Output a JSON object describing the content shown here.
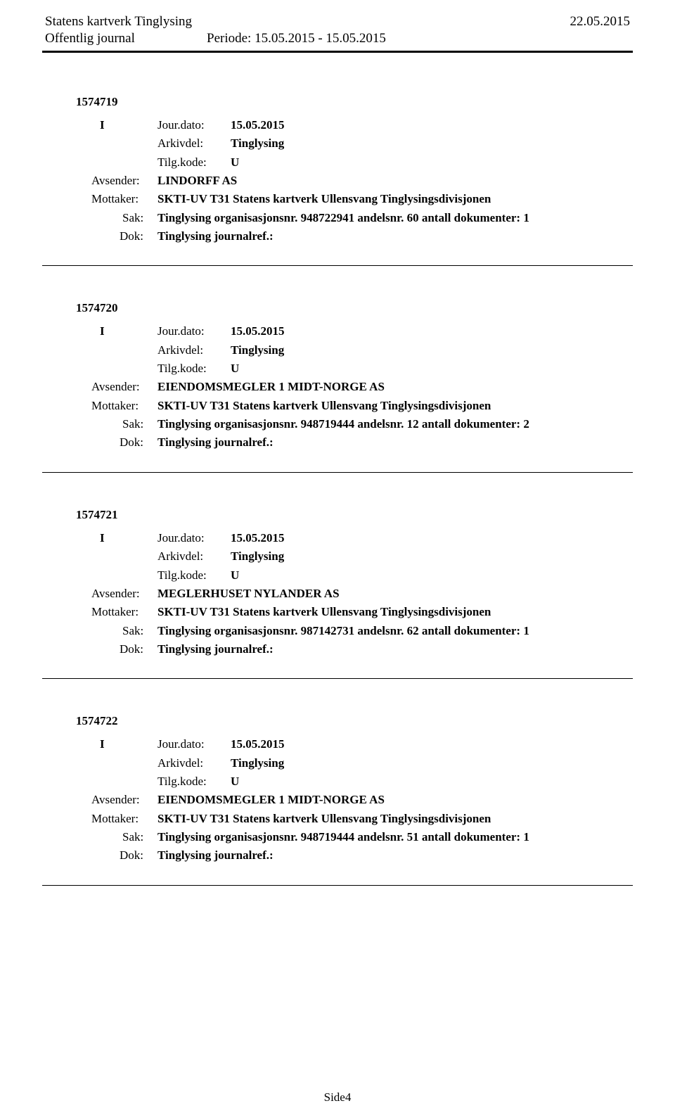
{
  "header": {
    "org": "Statens kartverk Tinglysing",
    "date": "22.05.2015",
    "journal": "Offentlig journal",
    "period": "Periode: 15.05.2015 - 15.05.2015"
  },
  "entries": [
    {
      "id": "1574719",
      "type": "I",
      "jour_label": "Jour.dato:",
      "jour_value": "15.05.2015",
      "arkiv_label": "Arkivdel:",
      "arkiv_value": "Tinglysing",
      "tilg_label": "Tilg.kode:",
      "tilg_value": "U",
      "avsender_label": "Avsender:",
      "avsender_value": "LINDORFF AS",
      "mottaker_label": "Mottaker:",
      "mottaker_value": "SKTI-UV T31 Statens kartverk Ullensvang Tinglysingsdivisjonen",
      "sak_label": "Sak:",
      "sak_value": "Tinglysing organisasjonsnr. 948722941 andelsnr. 60 antall dokumenter: 1",
      "dok_label": "Dok:",
      "dok_value": "Tinglysing journalref.:"
    },
    {
      "id": "1574720",
      "type": "I",
      "jour_label": "Jour.dato:",
      "jour_value": "15.05.2015",
      "arkiv_label": "Arkivdel:",
      "arkiv_value": "Tinglysing",
      "tilg_label": "Tilg.kode:",
      "tilg_value": "U",
      "avsender_label": "Avsender:",
      "avsender_value": "EIENDOMSMEGLER 1 MIDT-NORGE AS",
      "mottaker_label": "Mottaker:",
      "mottaker_value": "SKTI-UV T31 Statens kartverk Ullensvang Tinglysingsdivisjonen",
      "sak_label": "Sak:",
      "sak_value": "Tinglysing organisasjonsnr. 948719444 andelsnr. 12 antall dokumenter: 2",
      "dok_label": "Dok:",
      "dok_value": "Tinglysing journalref.:"
    },
    {
      "id": "1574721",
      "type": "I",
      "jour_label": "Jour.dato:",
      "jour_value": "15.05.2015",
      "arkiv_label": "Arkivdel:",
      "arkiv_value": "Tinglysing",
      "tilg_label": "Tilg.kode:",
      "tilg_value": "U",
      "avsender_label": "Avsender:",
      "avsender_value": "MEGLERHUSET NYLANDER AS",
      "mottaker_label": "Mottaker:",
      "mottaker_value": "SKTI-UV T31 Statens kartverk Ullensvang Tinglysingsdivisjonen",
      "sak_label": "Sak:",
      "sak_value": "Tinglysing organisasjonsnr. 987142731 andelsnr. 62 antall dokumenter: 1",
      "dok_label": "Dok:",
      "dok_value": "Tinglysing journalref.:"
    },
    {
      "id": "1574722",
      "type": "I",
      "jour_label": "Jour.dato:",
      "jour_value": "15.05.2015",
      "arkiv_label": "Arkivdel:",
      "arkiv_value": "Tinglysing",
      "tilg_label": "Tilg.kode:",
      "tilg_value": "U",
      "avsender_label": "Avsender:",
      "avsender_value": "EIENDOMSMEGLER 1 MIDT-NORGE AS",
      "mottaker_label": "Mottaker:",
      "mottaker_value": "SKTI-UV T31 Statens kartverk Ullensvang Tinglysingsdivisjonen",
      "sak_label": "Sak:",
      "sak_value": "Tinglysing organisasjonsnr. 948719444 andelsnr. 51 antall dokumenter: 1",
      "dok_label": "Dok:",
      "dok_value": "Tinglysing journalref.:"
    }
  ],
  "footer": {
    "page": "Side4"
  }
}
